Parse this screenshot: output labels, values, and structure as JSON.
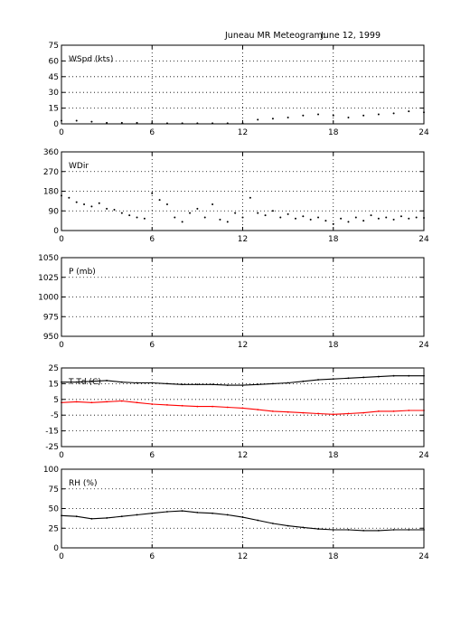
{
  "page": {
    "title": "Juneau MR Meteogram:",
    "date": "June 12, 1999"
  },
  "colors": {
    "background": "#ffffff",
    "axes": "#000000",
    "grid": "#000000",
    "series_black": "#000000",
    "series_red": "#ff0000"
  },
  "chart_data": [
    {
      "type": "line",
      "label": "WSpd (kts)",
      "xlim": [
        0,
        24
      ],
      "xticks": [
        0,
        6,
        12,
        18,
        24
      ],
      "ylim": [
        0,
        75
      ],
      "yticks": [
        0,
        15,
        30,
        45,
        60,
        75
      ],
      "grid": true,
      "series": [
        {
          "color": "#000000",
          "style": "dots",
          "x": [
            0,
            1,
            2,
            3,
            4,
            5,
            6,
            7,
            8,
            9,
            10,
            11,
            12,
            13,
            14,
            15,
            16,
            17,
            18,
            19,
            20,
            21,
            22,
            23,
            24
          ],
          "values": [
            3,
            3,
            2,
            1,
            1,
            1,
            0.5,
            0.5,
            0.5,
            0.5,
            0.5,
            0.5,
            0.5,
            4,
            5,
            6,
            8,
            9,
            8,
            6,
            8,
            9,
            10,
            12,
            11
          ]
        }
      ]
    },
    {
      "type": "scatter",
      "label": "WDir",
      "xlim": [
        0,
        24
      ],
      "xticks": [
        0,
        6,
        12,
        18,
        24
      ],
      "ylim": [
        0,
        360
      ],
      "yticks": [
        0,
        90,
        180,
        270,
        360
      ],
      "grid": true,
      "series": [
        {
          "color": "#000000",
          "style": "dots",
          "x": [
            0,
            0.5,
            1,
            1.5,
            2,
            2.5,
            3,
            3.5,
            4,
            4.5,
            5,
            5.5,
            6,
            6.5,
            7,
            7.5,
            8,
            8.5,
            9,
            9.5,
            10,
            10.5,
            11,
            11.5,
            12,
            12.5,
            13,
            13.5,
            14,
            14.5,
            15,
            15.5,
            16,
            16.5,
            17,
            17.5,
            18,
            18.5,
            19,
            19.5,
            20,
            20.5,
            21,
            21.5,
            22,
            22.5,
            23,
            23.5,
            24
          ],
          "values": [
            160,
            150,
            130,
            120,
            110,
            125,
            100,
            95,
            80,
            70,
            60,
            55,
            170,
            140,
            120,
            60,
            40,
            80,
            100,
            60,
            120,
            50,
            40,
            80,
            60,
            150,
            80,
            70,
            90,
            60,
            75,
            55,
            65,
            50,
            60,
            45,
            30,
            55,
            40,
            60,
            45,
            70,
            55,
            60,
            50,
            65,
            55,
            60,
            58
          ]
        }
      ]
    },
    {
      "type": "line",
      "label": "P (mb)",
      "xlim": [
        0,
        24
      ],
      "xticks": [
        0,
        6,
        12,
        18,
        24
      ],
      "ylim": [
        950,
        1050
      ],
      "yticks": [
        950,
        975,
        1000,
        1025,
        1050
      ],
      "grid": true,
      "series": []
    },
    {
      "type": "line",
      "label": "T Td (C)",
      "xlim": [
        0,
        24
      ],
      "xticks": [
        0,
        6,
        12,
        18,
        24
      ],
      "ylim": [
        -25,
        25
      ],
      "yticks": [
        -25,
        -15,
        -5,
        5,
        15,
        25
      ],
      "grid": true,
      "series": [
        {
          "color": "#000000",
          "style": "line",
          "x": [
            0,
            1,
            2,
            3,
            4,
            5,
            6,
            7,
            8,
            9,
            10,
            11,
            12,
            13,
            14,
            15,
            16,
            17,
            18,
            19,
            20,
            21,
            22,
            23,
            24
          ],
          "values": [
            16,
            16,
            16.5,
            17,
            16,
            15.5,
            15.5,
            15,
            14.5,
            14.5,
            14.5,
            14,
            14,
            14.5,
            15,
            15.5,
            16.5,
            17.5,
            18,
            18.5,
            19,
            19.5,
            20,
            20,
            20
          ]
        },
        {
          "color": "#ff0000",
          "style": "line",
          "x": [
            0,
            1,
            2,
            3,
            4,
            5,
            6,
            7,
            8,
            9,
            10,
            11,
            12,
            13,
            14,
            15,
            16,
            17,
            18,
            19,
            20,
            21,
            22,
            23,
            24
          ],
          "values": [
            3,
            3.5,
            3,
            3.5,
            4,
            3,
            2,
            1.5,
            1,
            0.5,
            0.5,
            0,
            -0.5,
            -1.5,
            -2.5,
            -3,
            -3.5,
            -4,
            -4.5,
            -4,
            -3.5,
            -2.5,
            -2.5,
            -2,
            -2
          ]
        }
      ]
    },
    {
      "type": "line",
      "label": "RH (%)",
      "xlim": [
        0,
        24
      ],
      "xticks": [
        0,
        6,
        12,
        18,
        24
      ],
      "ylim": [
        0,
        100
      ],
      "yticks": [
        0,
        25,
        50,
        75,
        100
      ],
      "grid": true,
      "series": [
        {
          "color": "#000000",
          "style": "line",
          "x": [
            0,
            1,
            2,
            3,
            4,
            5,
            6,
            7,
            8,
            9,
            10,
            11,
            12,
            13,
            14,
            15,
            16,
            17,
            18,
            19,
            20,
            21,
            22,
            23,
            24
          ],
          "values": [
            41,
            40,
            37,
            38,
            40,
            42,
            44,
            46,
            47,
            45,
            44,
            42,
            39,
            35,
            31,
            28,
            26,
            24,
            23,
            23,
            22,
            22,
            23,
            23,
            23
          ]
        }
      ]
    }
  ]
}
